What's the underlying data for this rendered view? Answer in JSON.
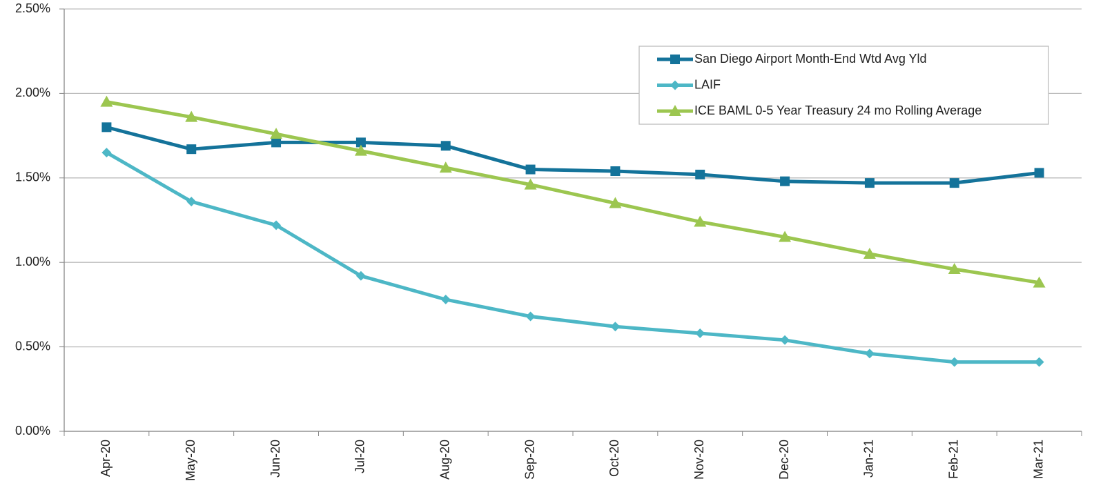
{
  "chart_data": {
    "type": "line",
    "categories": [
      "Apr-20",
      "May-20",
      "Jun-20",
      "Jul-20",
      "Aug-20",
      "Sep-20",
      "Oct-20",
      "Nov-20",
      "Dec-20",
      "Jan-21",
      "Feb-21",
      "Mar-21"
    ],
    "series": [
      {
        "name": "San Diego Airport Month-End Wtd Avg Yld",
        "color": "#14739a",
        "marker": "square",
        "values": [
          1.8,
          1.67,
          1.71,
          1.71,
          1.69,
          1.55,
          1.54,
          1.52,
          1.48,
          1.47,
          1.47,
          1.53
        ]
      },
      {
        "name": "LAIF",
        "color": "#4db7c6",
        "marker": "diamond",
        "values": [
          1.65,
          1.36,
          1.22,
          0.92,
          0.78,
          0.68,
          0.62,
          0.58,
          0.54,
          0.46,
          0.41,
          0.41
        ]
      },
      {
        "name": "ICE BAML 0-5 Year Treasury 24 mo Rolling Average",
        "color": "#9cc650",
        "marker": "triangle",
        "values": [
          1.95,
          1.86,
          1.76,
          1.66,
          1.56,
          1.46,
          1.35,
          1.24,
          1.15,
          1.05,
          0.96,
          0.88
        ]
      }
    ],
    "ylim": [
      0,
      2.5
    ],
    "yticks": [
      {
        "value": 0,
        "label": "0.00%"
      },
      {
        "value": 0.5,
        "label": "0.50%"
      },
      {
        "value": 1,
        "label": "1.00%"
      },
      {
        "value": 1.5,
        "label": "1.50%"
      },
      {
        "value": 2,
        "label": "2.00%"
      },
      {
        "value": 2.5,
        "label": "2.50%"
      }
    ],
    "grid": true,
    "legend": "upper right"
  }
}
